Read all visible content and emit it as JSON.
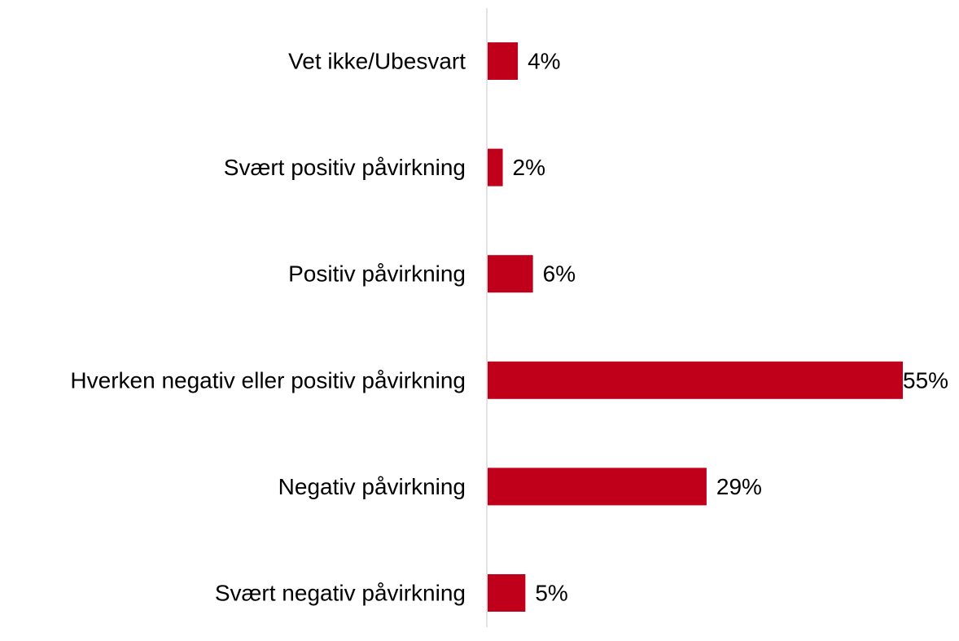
{
  "chart_data": {
    "type": "bar",
    "orientation": "horizontal",
    "categories": [
      "Vet ikke/Ubesvart",
      "Svært positiv påvirkning",
      "Positiv påvirkning",
      "Hverken negativ eller positiv påvirkning",
      "Negativ påvirkning",
      "Svært negativ påvirkning"
    ],
    "values": [
      4,
      2,
      6,
      55,
      29,
      5
    ],
    "value_labels": [
      "4%",
      "2%",
      "6%",
      "55%",
      "29%",
      "5%"
    ],
    "unit": "%",
    "xlim": [
      0,
      55
    ],
    "grid": false,
    "legend": "none",
    "colors": {
      "bar": "#c0001a",
      "axis": "#d9d9d9",
      "text": "#000000"
    }
  }
}
